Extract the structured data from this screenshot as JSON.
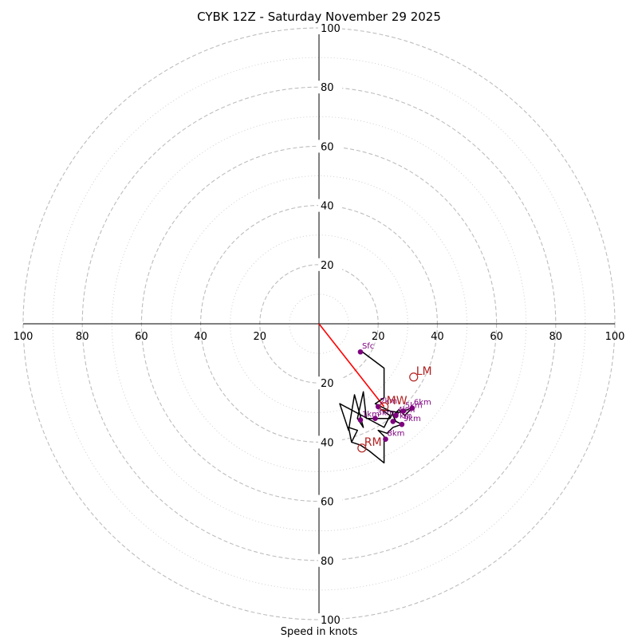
{
  "chart_data": {
    "type": "hodograph",
    "title": "CYBK 12Z - Saturday November 29 2025",
    "xlabel": "Speed in knots",
    "ylabel": "",
    "max_speed": 100,
    "ring_labels": [
      20,
      40,
      60,
      80,
      100
    ],
    "ring_major": [
      20,
      40,
      60,
      80,
      100
    ],
    "ring_minor": [
      10,
      30,
      50,
      70,
      90
    ],
    "axis_tick_labels": [
      "100",
      "80",
      "60",
      "40",
      "20",
      "20",
      "40",
      "60",
      "80",
      "100"
    ],
    "colors": {
      "trace": "#000000",
      "height_points": "#7f007f",
      "storm_motion": "#b22222",
      "mean_wind_vector": "#ff0000",
      "rings": "#bdbdbd"
    },
    "trace_uv": [
      [
        14,
        -9
      ],
      [
        22,
        -15
      ],
      [
        22,
        -25
      ],
      [
        19,
        -27
      ],
      [
        25,
        -30
      ],
      [
        24,
        -32
      ],
      [
        16,
        -32
      ],
      [
        15,
        -23
      ],
      [
        13,
        -32
      ],
      [
        15,
        -35
      ],
      [
        12,
        -24
      ],
      [
        10,
        -36
      ],
      [
        7,
        -27
      ],
      [
        22,
        -35
      ],
      [
        24,
        -31
      ],
      [
        21,
        -29
      ],
      [
        27,
        -30
      ],
      [
        30,
        -29
      ],
      [
        32,
        -28
      ],
      [
        29,
        -31
      ],
      [
        27,
        -29
      ],
      [
        25,
        -31
      ],
      [
        26,
        -33
      ],
      [
        28,
        -34
      ],
      [
        25,
        -35
      ],
      [
        23,
        -37
      ],
      [
        20,
        -36
      ],
      [
        22,
        -38
      ],
      [
        22,
        -47
      ],
      [
        17,
        -43
      ],
      [
        14,
        -41
      ],
      [
        11,
        -40
      ],
      [
        13,
        -36
      ],
      [
        10,
        -35
      ],
      [
        11,
        -40
      ]
    ],
    "height_points": [
      {
        "label": "Sfc",
        "u": 14,
        "v": -9.5
      },
      {
        "label": "2km",
        "u": 20,
        "v": -28
      },
      {
        "label": "1km",
        "u": 14,
        "v": -32.5
      },
      {
        "label": "3km",
        "u": 19,
        "v": -32
      },
      {
        "label": "4km",
        "u": 26,
        "v": -31
      },
      {
        "label": "5km",
        "u": 28.5,
        "v": -29.5
      },
      {
        "label": "6km",
        "u": 31.5,
        "v": -28.5
      },
      {
        "label": "7km",
        "u": 25,
        "v": -33
      },
      {
        "label": "9km",
        "u": 28,
        "v": -34
      },
      {
        "label": "8km",
        "u": 22.5,
        "v": -39
      }
    ],
    "storm_motion": [
      {
        "label": "LM",
        "u": 32,
        "v": -18
      },
      {
        "label": "MW",
        "u": 22,
        "v": -28
      },
      {
        "label": "RM",
        "u": 14.5,
        "v": -42
      }
    ],
    "mean_wind_vector": {
      "u": 22,
      "v": -28
    }
  }
}
